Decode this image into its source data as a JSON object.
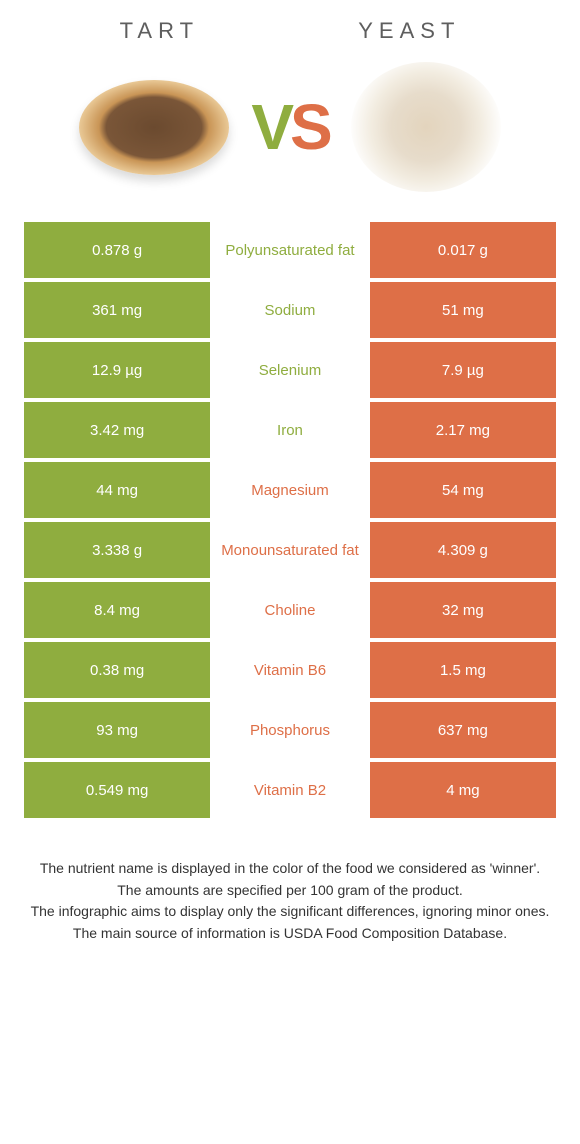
{
  "header": {
    "left_title": "Tart",
    "right_title": "Yeast",
    "vs_v": "V",
    "vs_s": "S"
  },
  "colors": {
    "tart": "#8fad3f",
    "yeast": "#de6f47",
    "background": "#ffffff",
    "text_dark": "#333333",
    "header_text": "#5e5e5e"
  },
  "rows": [
    {
      "left": "0.878 g",
      "label": "Polyunsaturated fat",
      "right": "0.017 g",
      "winner": "tart"
    },
    {
      "left": "361 mg",
      "label": "Sodium",
      "right": "51 mg",
      "winner": "tart"
    },
    {
      "left": "12.9 µg",
      "label": "Selenium",
      "right": "7.9 µg",
      "winner": "tart"
    },
    {
      "left": "3.42 mg",
      "label": "Iron",
      "right": "2.17 mg",
      "winner": "tart"
    },
    {
      "left": "44 mg",
      "label": "Magnesium",
      "right": "54 mg",
      "winner": "yeast"
    },
    {
      "left": "3.338 g",
      "label": "Monounsaturated fat",
      "right": "4.309 g",
      "winner": "yeast"
    },
    {
      "left": "8.4 mg",
      "label": "Choline",
      "right": "32 mg",
      "winner": "yeast"
    },
    {
      "left": "0.38 mg",
      "label": "Vitamin B6",
      "right": "1.5 mg",
      "winner": "yeast"
    },
    {
      "left": "93 mg",
      "label": "Phosphorus",
      "right": "637 mg",
      "winner": "yeast"
    },
    {
      "left": "0.549 mg",
      "label": "Vitamin B2",
      "right": "4 mg",
      "winner": "yeast"
    }
  ],
  "footer": {
    "line1": "The nutrient name is displayed in the color of the food we considered as 'winner'.",
    "line2": "The amounts are specified per 100 gram of the product.",
    "line3": "The infographic aims to display only the significant differences, ignoring minor ones.",
    "line4": "The main source of information is USDA Food Composition Database."
  }
}
